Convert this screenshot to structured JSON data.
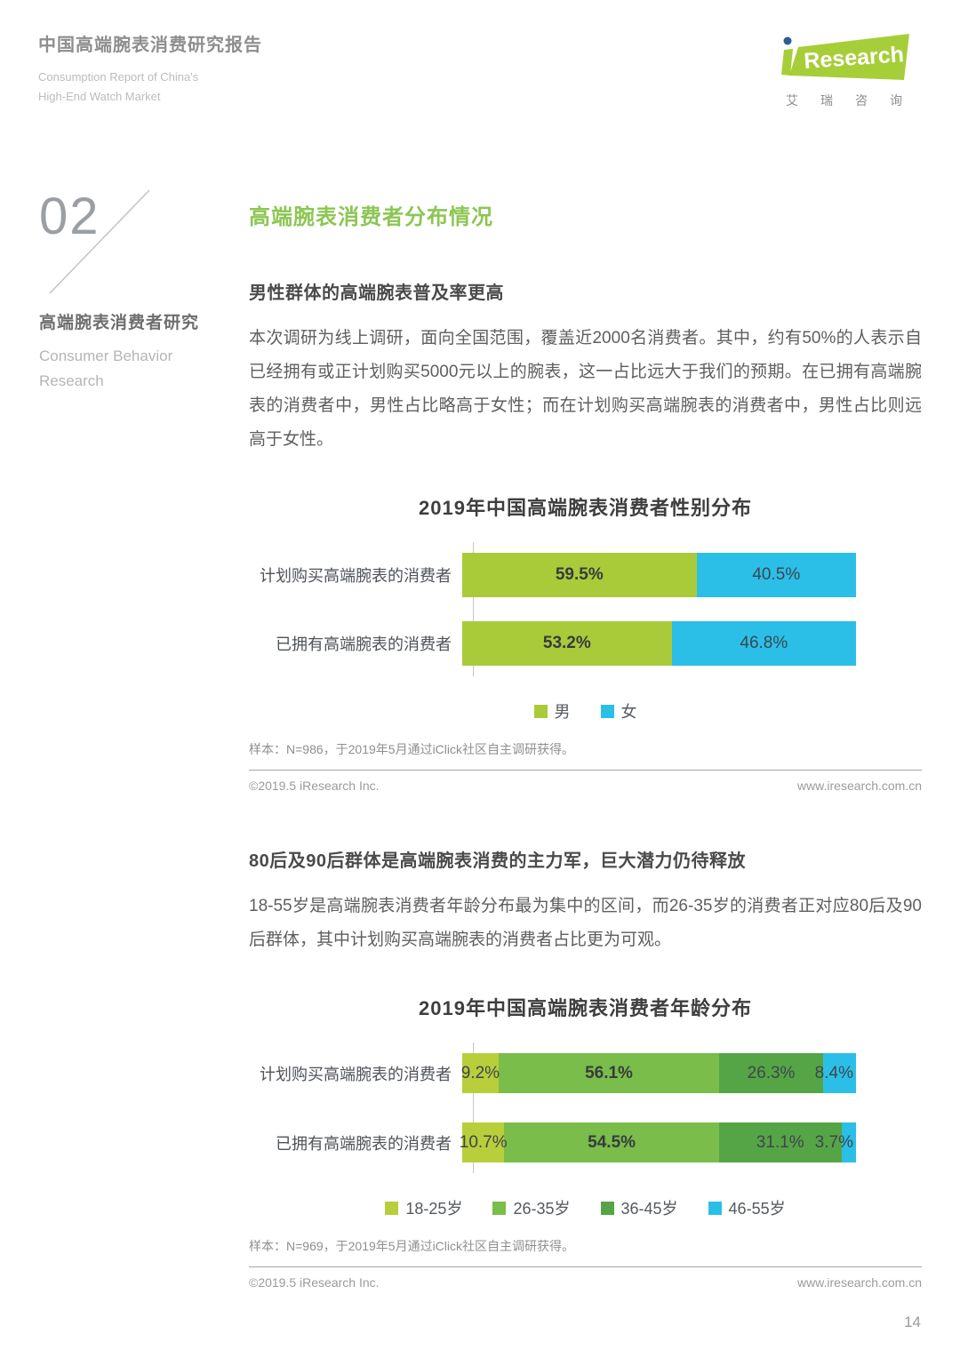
{
  "header": {
    "title": "中国高端腕表消费研究报告",
    "subtitle_line1": "Consumption Report of China's",
    "subtitle_line2": "High-End Watch Market",
    "logo": {
      "research_label": "Research",
      "chinese_name": "艾瑞咨询",
      "green": "#a6ce38",
      "dot_blue": "#2f5b97"
    }
  },
  "sidebar": {
    "section_number": "02",
    "title": "高端腕表消费者研究",
    "subtitle_line1": "Consumer Behavior",
    "subtitle_line2": "Research"
  },
  "main": {
    "page_title": "高端腕表消费者分布情况",
    "section1": {
      "heading": "男性群体的高端腕表普及率更高",
      "paragraph": "本次调研为线上调研，面向全国范围，覆盖近2000名消费者。其中，约有50%的人表示自已经拥有或正计划购买5000元以上的腕表，这一占比远大于我们的预期。在已拥有高端腕表的消费者中，男性占比略高于女性；而在计划购买高端腕表的消费者中，男性占比则远高于女性。",
      "note": "样本：N=986，于2019年5月通过iClick社区自主调研获得。",
      "footer_left": "©2019.5 iResearch Inc.",
      "footer_right": "www.iresearch.com.cn"
    },
    "section2": {
      "heading": "80后及90后群体是高端腕表消费的主力军，巨大潜力仍待释放",
      "paragraph": "18-55岁是高端腕表消费者年龄分布最为集中的区间，而26-35岁的消费者正对应80后及90后群体，其中计划购买高端腕表的消费者占比更为可观。",
      "note": "样本：N=969，于2019年5月通过iClick社区自主调研获得。",
      "footer_left": "©2019.5 iResearch Inc.",
      "footer_right": "www.iresearch.com.cn"
    },
    "page_number": "14"
  },
  "colors": {
    "accent_green": "#8cc653",
    "brand_green": "#a6ce38",
    "brand_blue": "#2bbfe8"
  },
  "chart_data": [
    {
      "type": "bar",
      "stacked": true,
      "orientation": "horizontal",
      "title": "2019年中国高端腕表消费者性别分布",
      "categories": [
        "计划购买高端腕表的消费者",
        "已拥有高端腕表的消费者"
      ],
      "series": [
        {
          "name": "男",
          "color": "#a9cb3a",
          "bold": true,
          "values": [
            59.5,
            53.2
          ]
        },
        {
          "name": "女",
          "color": "#2bbfe8",
          "bold": false,
          "values": [
            40.5,
            46.8
          ]
        }
      ],
      "unit": "%",
      "xlim": [
        0,
        100
      ],
      "legend_position": "bottom",
      "grid": false
    },
    {
      "type": "bar",
      "stacked": true,
      "orientation": "horizontal",
      "title": "2019年中国高端腕表消费者年龄分布",
      "categories": [
        "计划购买高端腕表的消费者",
        "已拥有高端腕表的消费者"
      ],
      "series": [
        {
          "name": "18-25岁",
          "color": "#b9ce3b",
          "bold": false,
          "values": [
            9.2,
            10.7
          ]
        },
        {
          "name": "26-35岁",
          "color": "#7abd4a",
          "bold": true,
          "values": [
            56.1,
            54.5
          ]
        },
        {
          "name": "36-45岁",
          "color": "#55a546",
          "bold": false,
          "values": [
            26.3,
            31.1
          ]
        },
        {
          "name": "46-55岁",
          "color": "#2bbfe8",
          "bold": false,
          "anchor_end": true,
          "values": [
            8.4,
            3.7
          ]
        }
      ],
      "unit": "%",
      "xlim": [
        0,
        100
      ],
      "legend_position": "bottom",
      "grid": false
    }
  ]
}
